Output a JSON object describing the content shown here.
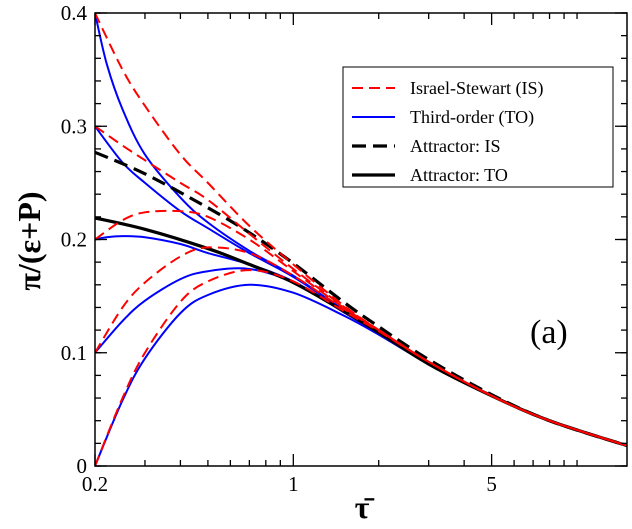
{
  "chart_data": {
    "type": "line",
    "title": "",
    "xlabel": "τ̄",
    "ylabel": "π/(ε+P)",
    "xscale": "log",
    "xlim": [
      0.2,
      15
    ],
    "ylim": [
      0,
      0.4
    ],
    "x_ticks": [
      {
        "value": 0.2,
        "label": "0.2"
      },
      {
        "value": 1,
        "label": "1"
      },
      {
        "value": 5,
        "label": "5"
      }
    ],
    "y_ticks": [
      {
        "value": 0,
        "label": "0"
      },
      {
        "value": 0.1,
        "label": "0.1"
      },
      {
        "value": 0.2,
        "label": "0.2"
      },
      {
        "value": 0.3,
        "label": "0.3"
      },
      {
        "value": 0.4,
        "label": "0.4"
      }
    ],
    "annotation": "(a)",
    "legend": {
      "position": "top-right",
      "entries": [
        {
          "label": "Israel-Stewart (IS)",
          "color": "#ff0000",
          "style": "dashed",
          "width": "thin"
        },
        {
          "label": "Third-order (TO)",
          "color": "#0000ff",
          "style": "solid",
          "width": "thin"
        },
        {
          "label": "Attractor: IS",
          "color": "#000000",
          "style": "dashed",
          "width": "thick"
        },
        {
          "label": "Attractor: TO",
          "color": "#000000",
          "style": "solid",
          "width": "thick"
        }
      ]
    },
    "series": [
      {
        "name": "IS (0.4)",
        "group": "Israel-Stewart (IS)",
        "x": [
          0.2,
          0.25,
          0.3,
          0.4,
          0.5,
          0.7,
          1,
          1.5,
          2,
          3,
          5,
          8,
          15
        ],
        "y": [
          0.4,
          0.35,
          0.318,
          0.275,
          0.25,
          0.212,
          0.178,
          0.142,
          0.12,
          0.092,
          0.062,
          0.04,
          0.018
        ]
      },
      {
        "name": "IS (0.3)",
        "group": "Israel-Stewart (IS)",
        "x": [
          0.2,
          0.25,
          0.3,
          0.4,
          0.5,
          0.7,
          1,
          1.5,
          2,
          3,
          5,
          8,
          15
        ],
        "y": [
          0.3,
          0.283,
          0.27,
          0.25,
          0.235,
          0.205,
          0.174,
          0.141,
          0.12,
          0.092,
          0.062,
          0.04,
          0.018
        ]
      },
      {
        "name": "IS (0.2)",
        "group": "Israel-Stewart (IS)",
        "x": [
          0.2,
          0.25,
          0.3,
          0.4,
          0.5,
          0.7,
          1,
          1.5,
          2,
          3,
          5,
          8,
          15
        ],
        "y": [
          0.2,
          0.217,
          0.224,
          0.225,
          0.22,
          0.2,
          0.172,
          0.14,
          0.12,
          0.092,
          0.062,
          0.04,
          0.018
        ]
      },
      {
        "name": "IS (0.1)",
        "group": "Israel-Stewart (IS)",
        "x": [
          0.2,
          0.25,
          0.3,
          0.4,
          0.5,
          0.7,
          1,
          1.5,
          2,
          3,
          5,
          8,
          15
        ],
        "y": [
          0.1,
          0.14,
          0.162,
          0.185,
          0.193,
          0.188,
          0.168,
          0.139,
          0.12,
          0.092,
          0.062,
          0.04,
          0.018
        ]
      },
      {
        "name": "IS (0.0)",
        "group": "Israel-Stewart (IS)",
        "x": [
          0.2,
          0.25,
          0.3,
          0.4,
          0.5,
          0.7,
          1,
          1.5,
          2,
          3,
          5,
          8,
          15
        ],
        "y": [
          0.0,
          0.06,
          0.1,
          0.145,
          0.163,
          0.173,
          0.163,
          0.137,
          0.119,
          0.092,
          0.062,
          0.04,
          0.018
        ]
      },
      {
        "name": "TO (0.4)",
        "group": "Third-order (TO)",
        "x": [
          0.2,
          0.22,
          0.25,
          0.3,
          0.4,
          0.5,
          0.7,
          1,
          1.5,
          2,
          3,
          5,
          8,
          15
        ],
        "y": [
          0.4,
          0.355,
          0.315,
          0.275,
          0.237,
          0.215,
          0.19,
          0.168,
          0.138,
          0.118,
          0.09,
          0.062,
          0.04,
          0.018
        ]
      },
      {
        "name": "TO (0.3)",
        "group": "Third-order (TO)",
        "x": [
          0.2,
          0.25,
          0.3,
          0.4,
          0.5,
          0.7,
          1,
          1.5,
          2,
          3,
          5,
          8,
          15
        ],
        "y": [
          0.3,
          0.268,
          0.25,
          0.225,
          0.21,
          0.188,
          0.167,
          0.138,
          0.118,
          0.09,
          0.062,
          0.04,
          0.018
        ]
      },
      {
        "name": "TO (0.2)",
        "group": "Third-order (TO)",
        "x": [
          0.2,
          0.22,
          0.25,
          0.3,
          0.4,
          0.5,
          0.7,
          1,
          1.5,
          2,
          3,
          5,
          8,
          15
        ],
        "y": [
          0.2,
          0.202,
          0.203,
          0.202,
          0.196,
          0.188,
          0.178,
          0.163,
          0.137,
          0.118,
          0.09,
          0.062,
          0.04,
          0.018
        ]
      },
      {
        "name": "TO (0.1)",
        "group": "Third-order (TO)",
        "x": [
          0.2,
          0.25,
          0.3,
          0.4,
          0.5,
          0.7,
          1,
          1.5,
          2,
          3,
          5,
          8,
          15
        ],
        "y": [
          0.1,
          0.128,
          0.146,
          0.165,
          0.172,
          0.174,
          0.162,
          0.136,
          0.117,
          0.09,
          0.062,
          0.04,
          0.018
        ]
      },
      {
        "name": "TO (0.0)",
        "group": "Third-order (TO)",
        "x": [
          0.2,
          0.25,
          0.3,
          0.4,
          0.5,
          0.7,
          1,
          1.5,
          2,
          3,
          5,
          8,
          15
        ],
        "y": [
          0.0,
          0.058,
          0.095,
          0.135,
          0.151,
          0.16,
          0.153,
          0.133,
          0.116,
          0.09,
          0.062,
          0.04,
          0.018
        ]
      },
      {
        "name": "Attractor: IS",
        "group": "Attractor: IS",
        "x": [
          0.2,
          0.3,
          0.5,
          0.7,
          1,
          1.5,
          2,
          3,
          5,
          8,
          15
        ],
        "y": [
          0.277,
          0.258,
          0.228,
          0.206,
          0.179,
          0.145,
          0.123,
          0.094,
          0.063,
          0.04,
          0.018
        ]
      },
      {
        "name": "Attractor: TO",
        "group": "Attractor: TO",
        "x": [
          0.2,
          0.3,
          0.5,
          0.7,
          1,
          1.5,
          2,
          3,
          5,
          8,
          15
        ],
        "y": [
          0.219,
          0.209,
          0.192,
          0.178,
          0.162,
          0.137,
          0.118,
          0.09,
          0.062,
          0.04,
          0.018
        ]
      }
    ]
  }
}
